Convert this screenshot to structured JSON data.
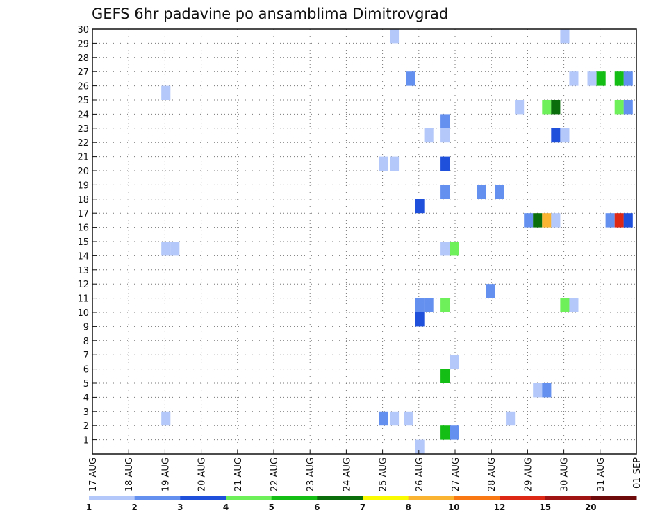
{
  "chart_data": {
    "type": "heatmap",
    "title": "GEFS 6hr padavine po ansamblima Dimitrovgrad",
    "y_ticks": [
      "1",
      "2",
      "3",
      "4",
      "5",
      "6",
      "7",
      "8",
      "9",
      "10",
      "11",
      "12",
      "13",
      "14",
      "15",
      "16",
      "17",
      "18",
      "19",
      "20",
      "21",
      "22",
      "23",
      "24",
      "25",
      "26",
      "27",
      "28",
      "29",
      "30"
    ],
    "x_ticks": [
      "17 AUG",
      "18 AUG",
      "19 AUG",
      "20 AUG",
      "21 AUG",
      "22 AUG",
      "23 AUG",
      "24 AUG",
      "25 AUG",
      "26 AUG",
      "27 AUG",
      "28 AUG",
      "29 AUG",
      "30 AUG",
      "31 AUG",
      "01 SEP"
    ],
    "x_range_days": [
      0,
      15
    ],
    "y_range": [
      0,
      30
    ],
    "grid": true,
    "colorbar": {
      "position": "bottom",
      "colors": [
        "#b4c8fa",
        "#6490f0",
        "#1e50dc",
        "#6ef05a",
        "#14be14",
        "#0a6e0a",
        "#fafa00",
        "#fab432",
        "#fa7814",
        "#dc2814",
        "#a01414",
        "#6e0a0a"
      ],
      "labels": [
        "1",
        "2",
        "3",
        "4",
        "5",
        "6",
        "7",
        "8",
        "10",
        "12",
        "15",
        "20"
      ]
    },
    "cells": [
      {
        "d": 1.9,
        "m": 25,
        "c": 0
      },
      {
        "d": 1.9,
        "m": 14,
        "c": 0
      },
      {
        "d": 2.15,
        "m": 14,
        "c": 0
      },
      {
        "d": 1.9,
        "m": 2,
        "c": 0
      },
      {
        "d": 8.2,
        "m": 29,
        "c": 0
      },
      {
        "d": 7.9,
        "m": 2,
        "c": 1
      },
      {
        "d": 8.2,
        "m": 2,
        "c": 0
      },
      {
        "d": 7.9,
        "m": 20,
        "c": 0
      },
      {
        "d": 8.2,
        "m": 20,
        "c": 0
      },
      {
        "d": 8.6,
        "m": 2,
        "c": 0
      },
      {
        "d": 8.65,
        "m": 26,
        "c": 1
      },
      {
        "d": 8.9,
        "m": 17,
        "c": 2
      },
      {
        "d": 8.9,
        "m": 9,
        "c": 2
      },
      {
        "d": 8.9,
        "m": 10,
        "c": 1
      },
      {
        "d": 9.15,
        "m": 10,
        "c": 1
      },
      {
        "d": 9.15,
        "m": 22,
        "c": 0
      },
      {
        "d": 8.9,
        "m": 0,
        "c": 0
      },
      {
        "d": 9.6,
        "m": 23,
        "c": 1
      },
      {
        "d": 9.6,
        "m": 22,
        "c": 0
      },
      {
        "d": 9.6,
        "m": 20,
        "c": 2
      },
      {
        "d": 9.6,
        "m": 18,
        "c": 1
      },
      {
        "d": 9.6,
        "m": 14,
        "c": 0
      },
      {
        "d": 9.85,
        "m": 14,
        "c": 3
      },
      {
        "d": 9.6,
        "m": 10,
        "c": 3
      },
      {
        "d": 9.6,
        "m": 5,
        "c": 4
      },
      {
        "d": 9.85,
        "m": 6,
        "c": 0
      },
      {
        "d": 9.6,
        "m": 1,
        "c": 4
      },
      {
        "d": 9.85,
        "m": 1,
        "c": 1
      },
      {
        "d": 10.6,
        "m": 18,
        "c": 1
      },
      {
        "d": 11.1,
        "m": 18,
        "c": 1
      },
      {
        "d": 10.85,
        "m": 11,
        "c": 1
      },
      {
        "d": 11.4,
        "m": 2,
        "c": 0
      },
      {
        "d": 11.65,
        "m": 24,
        "c": 0
      },
      {
        "d": 11.9,
        "m": 16,
        "c": 1
      },
      {
        "d": 12.15,
        "m": 16,
        "c": 5
      },
      {
        "d": 12.4,
        "m": 16,
        "c": 7
      },
      {
        "d": 12.65,
        "m": 16,
        "c": 0
      },
      {
        "d": 12.15,
        "m": 4,
        "c": 0
      },
      {
        "d": 12.4,
        "m": 4,
        "c": 1
      },
      {
        "d": 12.4,
        "m": 24,
        "c": 3
      },
      {
        "d": 12.65,
        "m": 24,
        "c": 5
      },
      {
        "d": 12.65,
        "m": 22,
        "c": 2
      },
      {
        "d": 12.9,
        "m": 22,
        "c": 0
      },
      {
        "d": 12.9,
        "m": 29,
        "c": 0
      },
      {
        "d": 12.9,
        "m": 10,
        "c": 3
      },
      {
        "d": 13.15,
        "m": 10,
        "c": 0
      },
      {
        "d": 13.15,
        "m": 26,
        "c": 0
      },
      {
        "d": 13.65,
        "m": 26,
        "c": 0
      },
      {
        "d": 13.9,
        "m": 26,
        "c": 4
      },
      {
        "d": 14.4,
        "m": 26,
        "c": 4
      },
      {
        "d": 14.65,
        "m": 26,
        "c": 1
      },
      {
        "d": 14.4,
        "m": 24,
        "c": 3
      },
      {
        "d": 14.65,
        "m": 24,
        "c": 1
      },
      {
        "d": 14.15,
        "m": 16,
        "c": 1
      },
      {
        "d": 14.4,
        "m": 16,
        "c": 9
      },
      {
        "d": 14.65,
        "m": 16,
        "c": 2
      }
    ]
  }
}
